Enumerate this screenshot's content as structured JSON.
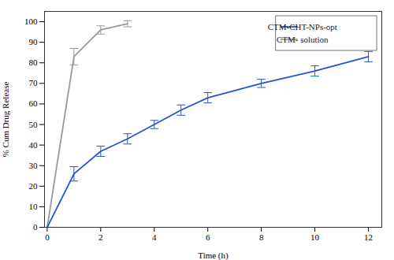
{
  "chart_data": {
    "type": "line",
    "xlabel": "Time (h)",
    "ylabel": "% Cum Drug Release",
    "xlim": [
      -0.1,
      12.5
    ],
    "ylim": [
      0,
      105
    ],
    "xticks": [
      0,
      2,
      4,
      6,
      8,
      10,
      12
    ],
    "yticks": [
      0,
      10,
      20,
      30,
      40,
      50,
      60,
      70,
      80,
      90,
      100
    ],
    "legend": "upper right",
    "series": [
      {
        "name": "CTM-CHT-NPs-opt",
        "color": "#2255cc",
        "x": [
          0,
          1,
          2,
          3,
          4,
          5,
          6,
          8,
          10,
          12
        ],
        "values": [
          0,
          26,
          37,
          43,
          50,
          57,
          63,
          70,
          76,
          83
        ],
        "yerr": [
          0,
          3.5,
          2.5,
          2.5,
          2.0,
          2.5,
          2.5,
          2.0,
          2.5,
          2.5
        ]
      },
      {
        "name": "CTM- solution",
        "color": "#999999",
        "x": [
          0,
          1,
          2,
          3
        ],
        "values": [
          0,
          83,
          96,
          99
        ],
        "yerr": [
          0,
          4.0,
          2.0,
          1.5
        ]
      }
    ]
  }
}
